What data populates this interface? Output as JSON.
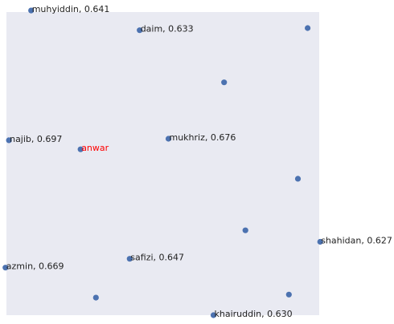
{
  "chart_data": {
    "type": "scatter",
    "title": "",
    "xlabel": "",
    "ylabel": "",
    "grid": false,
    "axes_visible": false,
    "xlim": [
      0,
      100
    ],
    "ylim": [
      0,
      100
    ],
    "colors": {
      "plot_background": "#e9eaf2",
      "point": "#4c72b0",
      "label": "#222222",
      "highlight_label": "#ff0000"
    },
    "points": [
      {
        "x": 7.9,
        "y": 100.5,
        "label": "muhyiddin, 0.641",
        "highlight": false
      },
      {
        "x": 42.6,
        "y": 94.0,
        "label": "daim, 0.633",
        "highlight": false
      },
      {
        "x": 96.3,
        "y": 94.7,
        "label": "",
        "highlight": false
      },
      {
        "x": 69.6,
        "y": 76.8,
        "label": "",
        "highlight": false
      },
      {
        "x": 0.8,
        "y": 57.7,
        "label": "najib, 0.697",
        "highlight": false
      },
      {
        "x": 23.7,
        "y": 54.7,
        "label": "anwar",
        "highlight": true
      },
      {
        "x": 51.8,
        "y": 58.2,
        "label": "mukhriz, 0.676",
        "highlight": false
      },
      {
        "x": 93.2,
        "y": 45.0,
        "label": "",
        "highlight": false
      },
      {
        "x": 76.4,
        "y": 28.0,
        "label": "",
        "highlight": false
      },
      {
        "x": 100.3,
        "y": 24.2,
        "label": "shahidan, 0.627",
        "highlight": false
      },
      {
        "x": 39.4,
        "y": 18.6,
        "label": "safizi, 0.647",
        "highlight": false
      },
      {
        "x": -0.3,
        "y": 15.7,
        "label": "azmin, 0.669",
        "highlight": false
      },
      {
        "x": 28.6,
        "y": 5.8,
        "label": "",
        "highlight": false
      },
      {
        "x": 90.3,
        "y": 6.8,
        "label": "",
        "highlight": false
      },
      {
        "x": 66.2,
        "y": 0.0,
        "label": "khairuddin, 0.630",
        "highlight": false
      }
    ]
  }
}
